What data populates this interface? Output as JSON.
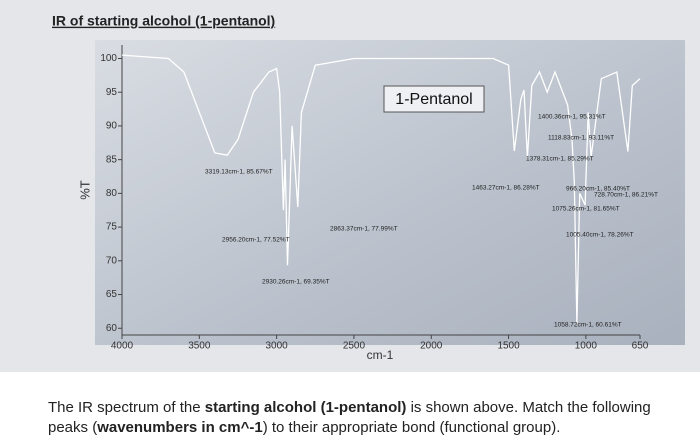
{
  "heading": "IR of starting alcohol (1-pentanol)",
  "caption": [
    {
      "text": "The IR spectrum of the ",
      "bold": false
    },
    {
      "text": "starting alcohol (1-pentanol)",
      "bold": true
    },
    {
      "text": " is shown above. Match the following peaks (",
      "bold": false
    },
    {
      "text": "wavenumbers in cm^-1",
      "bold": true
    },
    {
      "text": ") to their appropriate bond (functional group).",
      "bold": false
    }
  ],
  "chart_data": {
    "type": "line",
    "xlabel": "cm-1",
    "ylabel": "%T",
    "xlim": [
      4000,
      650
    ],
    "ylim": [
      59,
      102
    ],
    "xticks": [
      4000,
      3500,
      3000,
      2500,
      2000,
      1500,
      1000,
      650
    ],
    "yticks": [
      100,
      95,
      90,
      85,
      80,
      75,
      70,
      65,
      60
    ],
    "x": [
      4000,
      3700,
      3600,
      3500,
      3400,
      3319,
      3250,
      3150,
      3050,
      3000,
      2980,
      2956,
      2945,
      2930,
      2900,
      2863,
      2840,
      2750,
      2500,
      2000,
      1600,
      1500,
      1463,
      1420,
      1400,
      1378,
      1350,
      1300,
      1250,
      1200,
      1118,
      1090,
      1075,
      1058,
      1040,
      1005,
      985,
      966,
      900,
      800,
      728,
      700,
      650
    ],
    "series": [
      {
        "name": "1-Pentanol",
        "color": "#ffffff",
        "values": [
          100.5,
          100,
          98,
          92,
          86,
          85.67,
          88,
          95,
          98,
          98.5,
          95,
          77.52,
          85,
          69.35,
          90,
          77.99,
          92,
          99,
          100,
          100,
          100,
          99,
          86.28,
          94,
          95.31,
          85.29,
          96,
          98,
          95,
          98,
          93.11,
          88,
          81.65,
          60.61,
          80,
          78.26,
          92,
          85.4,
          97,
          98,
          86.21,
          96,
          97
        ]
      }
    ],
    "annotations": [
      "3319.13cm-1, 85.67%T",
      "2956.20cm-1, 77.52%T",
      "2930.26cm-1, 69.35%T",
      "2863.37cm-1, 77.99%T",
      "1463.27cm-1, 86.28%T",
      "1400.36cm-1, 95.31%T",
      "1118.83cm-1, 93.11%T",
      "1378.31cm-1, 85.29%T",
      "966.20cm-1, 85.40%T",
      "728.70cm-1, 86.21%T",
      "1075.26cm-1, 81.65%T",
      "1005.40cm-1, 78.26%T",
      "1058.72cm-1, 60.61%T"
    ]
  }
}
